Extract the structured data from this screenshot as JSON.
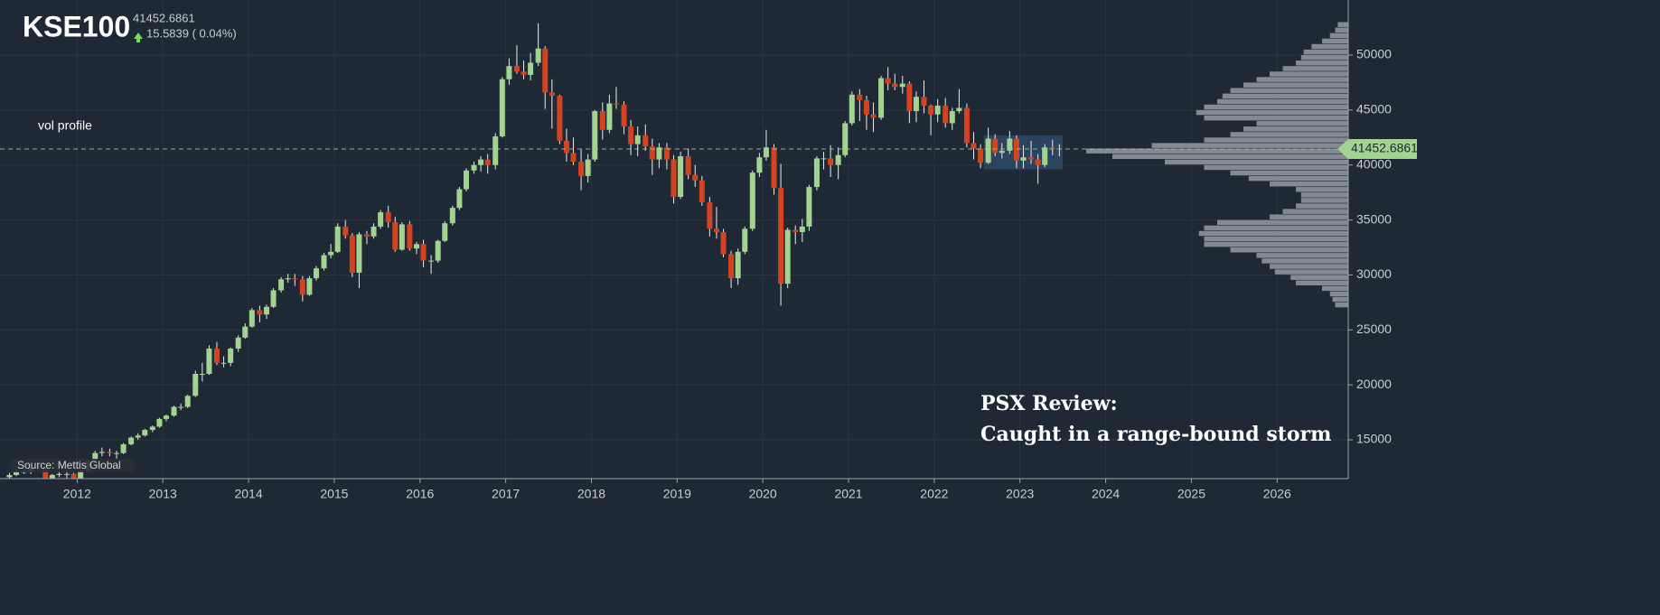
{
  "chart_data": {
    "type": "candlestick",
    "title": "KSE100",
    "last_price": 41452.6861,
    "change_label": "15.5839 ( 0.04%)",
    "annotations": [
      "vol profile",
      "Source: Mettis Global",
      "PSX Review:",
      "Caught in a range-bound storm"
    ],
    "up_color": "#a3d48f",
    "down_color": "#d4421f",
    "grid": true,
    "xlim": [
      2011.1,
      2026.83
    ],
    "xticks": [
      2012,
      2013,
      2014,
      2015,
      2016,
      2017,
      2018,
      2019,
      2020,
      2021,
      2022,
      2023,
      2024,
      2025,
      2026
    ],
    "ylim": [
      11470,
      55010
    ],
    "yticks": [
      15000,
      20000,
      25000,
      30000,
      35000,
      40000,
      45000,
      50000
    ],
    "x": [
      2011.21,
      2011.29,
      2011.38,
      2011.46,
      2011.54,
      2011.63,
      2011.71,
      2011.79,
      2011.88,
      2011.96,
      2012.04,
      2012.13,
      2012.21,
      2012.29,
      2012.38,
      2012.46,
      2012.54,
      2012.63,
      2012.71,
      2012.79,
      2012.88,
      2012.96,
      2013.04,
      2013.13,
      2013.21,
      2013.29,
      2013.38,
      2013.46,
      2013.54,
      2013.63,
      2013.71,
      2013.79,
      2013.88,
      2013.96,
      2014.04,
      2014.13,
      2014.21,
      2014.29,
      2014.38,
      2014.46,
      2014.54,
      2014.63,
      2014.71,
      2014.79,
      2014.88,
      2014.96,
      2015.04,
      2015.13,
      2015.21,
      2015.29,
      2015.38,
      2015.46,
      2015.54,
      2015.63,
      2015.71,
      2015.79,
      2015.88,
      2015.96,
      2016.04,
      2016.13,
      2016.21,
      2016.29,
      2016.38,
      2016.46,
      2016.54,
      2016.63,
      2016.71,
      2016.79,
      2016.88,
      2016.96,
      2017.04,
      2017.13,
      2017.21,
      2017.29,
      2017.38,
      2017.46,
      2017.54,
      2017.63,
      2017.71,
      2017.79,
      2017.88,
      2017.96,
      2018.04,
      2018.13,
      2018.21,
      2018.29,
      2018.38,
      2018.46,
      2018.54,
      2018.63,
      2018.71,
      2018.79,
      2018.88,
      2018.96,
      2019.04,
      2019.13,
      2019.21,
      2019.29,
      2019.38,
      2019.46,
      2019.54,
      2019.63,
      2019.71,
      2019.79,
      2019.88,
      2019.96,
      2020.04,
      2020.13,
      2020.21,
      2020.29,
      2020.38,
      2020.46,
      2020.54,
      2020.63,
      2020.71,
      2020.79,
      2020.88,
      2020.96,
      2021.04,
      2021.13,
      2021.21,
      2021.29,
      2021.38,
      2021.46,
      2021.54,
      2021.63,
      2021.71,
      2021.79,
      2021.88,
      2021.96,
      2022.04,
      2022.13,
      2022.21,
      2022.29,
      2022.38,
      2022.46,
      2022.54,
      2022.63,
      2022.71,
      2022.79,
      2022.88,
      2022.96,
      2023.04,
      2023.13,
      2023.21,
      2023.29,
      2023.38,
      2023.46
    ],
    "ohlc": [
      [
        11600,
        12000,
        11400,
        11800
      ],
      [
        11800,
        12300,
        11700,
        12100
      ],
      [
        12100,
        12400,
        11900,
        12100
      ],
      [
        12100,
        12600,
        11900,
        12500
      ],
      [
        12500,
        12700,
        12200,
        12400
      ],
      [
        12400,
        12500,
        10900,
        11000
      ],
      [
        11000,
        11900,
        10900,
        11800
      ],
      [
        11800,
        12100,
        11600,
        11900
      ],
      [
        11900,
        12100,
        11500,
        11900
      ],
      [
        11900,
        12000,
        11200,
        11350
      ],
      [
        11350,
        12300,
        11200,
        12200
      ],
      [
        12200,
        13200,
        12100,
        13100
      ],
      [
        13100,
        14000,
        13000,
        13800
      ],
      [
        13800,
        14300,
        13500,
        13900
      ],
      [
        13900,
        14200,
        13500,
        13800
      ],
      [
        13800,
        14000,
        13300,
        13800
      ],
      [
        13800,
        14700,
        13700,
        14600
      ],
      [
        14600,
        15300,
        14500,
        15200
      ],
      [
        15200,
        15600,
        15000,
        15400
      ],
      [
        15400,
        16000,
        15300,
        15900
      ],
      [
        15900,
        16300,
        15700,
        16200
      ],
      [
        16200,
        17000,
        16100,
        16900
      ],
      [
        16900,
        17300,
        16700,
        17200
      ],
      [
        17200,
        18100,
        17100,
        18000
      ],
      [
        18000,
        18300,
        17700,
        18000
      ],
      [
        18000,
        19100,
        17900,
        19000
      ],
      [
        19000,
        21300,
        18900,
        21000
      ],
      [
        21000,
        22000,
        20300,
        21000
      ],
      [
        21000,
        23600,
        20900,
        23300
      ],
      [
        23300,
        23900,
        21800,
        22000
      ],
      [
        22000,
        22600,
        21600,
        22000
      ],
      [
        22000,
        23400,
        21700,
        23300
      ],
      [
        23300,
        24500,
        23000,
        24300
      ],
      [
        24300,
        25600,
        24200,
        25300
      ],
      [
        25300,
        27000,
        25200,
        26800
      ],
      [
        26800,
        27200,
        25700,
        26400
      ],
      [
        26400,
        27300,
        26000,
        27100
      ],
      [
        27100,
        28800,
        27000,
        28600
      ],
      [
        28600,
        29800,
        28400,
        29600
      ],
      [
        29600,
        30100,
        29300,
        29700
      ],
      [
        29700,
        30100,
        29000,
        29600
      ],
      [
        29600,
        29900,
        27600,
        28200
      ],
      [
        28200,
        29900,
        28100,
        29700
      ],
      [
        29700,
        30800,
        29500,
        30600
      ],
      [
        30600,
        32000,
        30400,
        31800
      ],
      [
        31800,
        32800,
        31500,
        32100
      ],
      [
        32100,
        34700,
        32000,
        34400
      ],
      [
        34400,
        35000,
        33300,
        33600
      ],
      [
        33600,
        33800,
        29800,
        30200
      ],
      [
        30200,
        33900,
        28800,
        33700
      ],
      [
        33700,
        34000,
        32800,
        33500
      ],
      [
        33500,
        34700,
        33300,
        34400
      ],
      [
        34400,
        35900,
        34200,
        35700
      ],
      [
        35700,
        36300,
        34300,
        34800
      ],
      [
        34800,
        35300,
        32100,
        32300
      ],
      [
        32300,
        34800,
        32200,
        34600
      ],
      [
        34600,
        34900,
        32200,
        32400
      ],
      [
        32400,
        33000,
        31900,
        32800
      ],
      [
        32800,
        33200,
        30700,
        31300
      ],
      [
        31300,
        31800,
        30100,
        31300
      ],
      [
        31300,
        33200,
        31100,
        33100
      ],
      [
        33100,
        34900,
        33000,
        34700
      ],
      [
        34700,
        36300,
        34500,
        36100
      ],
      [
        36100,
        38000,
        35900,
        37800
      ],
      [
        37800,
        39700,
        37600,
        39500
      ],
      [
        39500,
        40300,
        39200,
        40000
      ],
      [
        40000,
        40800,
        39400,
        40500
      ],
      [
        40500,
        41000,
        39200,
        40000
      ],
      [
        40000,
        42900,
        39600,
        42600
      ],
      [
        42600,
        48000,
        42500,
        47800
      ],
      [
        47800,
        49700,
        47300,
        49000
      ],
      [
        49000,
        50900,
        48300,
        48500
      ],
      [
        48500,
        49500,
        47800,
        48200
      ],
      [
        48200,
        50200,
        47700,
        49300
      ],
      [
        49300,
        52900,
        49000,
        50600
      ],
      [
        50600,
        50800,
        45100,
        46600
      ],
      [
        46600,
        47800,
        43300,
        46300
      ],
      [
        46300,
        46400,
        41900,
        42200
      ],
      [
        42200,
        43300,
        40300,
        41100
      ],
      [
        41100,
        42500,
        40000,
        40300
      ],
      [
        40300,
        41400,
        37700,
        39000
      ],
      [
        39000,
        41000,
        38400,
        40500
      ],
      [
        40500,
        45000,
        40300,
        44900
      ],
      [
        44900,
        45700,
        42300,
        43200
      ],
      [
        43200,
        46400,
        42900,
        45600
      ],
      [
        45600,
        47100,
        45100,
        45500
      ],
      [
        45500,
        45800,
        42800,
        43500
      ],
      [
        43500,
        44100,
        40900,
        41900
      ],
      [
        41900,
        43500,
        40800,
        42700
      ],
      [
        42700,
        43700,
        41300,
        41700
      ],
      [
        41700,
        42400,
        39100,
        40500
      ],
      [
        40500,
        42000,
        39700,
        41600
      ],
      [
        41600,
        42000,
        39600,
        40500
      ],
      [
        40500,
        40900,
        36500,
        37100
      ],
      [
        37100,
        41200,
        36900,
        40800
      ],
      [
        40800,
        41500,
        38700,
        39100
      ],
      [
        39100,
        40000,
        38000,
        38600
      ],
      [
        38600,
        39000,
        36300,
        36600
      ],
      [
        36600,
        37100,
        33500,
        34200
      ],
      [
        34200,
        36200,
        33300,
        33900
      ],
      [
        33900,
        34200,
        31600,
        31900
      ],
      [
        31900,
        32200,
        28800,
        29700
      ],
      [
        29700,
        32400,
        29100,
        32100
      ],
      [
        32100,
        34400,
        31900,
        34200
      ],
      [
        34200,
        39500,
        34000,
        39300
      ],
      [
        39300,
        41100,
        38900,
        40700
      ],
      [
        40700,
        43200,
        40400,
        41600
      ],
      [
        41600,
        41900,
        37300,
        37900
      ],
      [
        37900,
        40100,
        27200,
        29200
      ],
      [
        29200,
        34300,
        28800,
        34100
      ],
      [
        34100,
        34500,
        32800,
        33900
      ],
      [
        33900,
        35100,
        33000,
        34400
      ],
      [
        34400,
        38200,
        34000,
        38000
      ],
      [
        38000,
        40800,
        37700,
        40600
      ],
      [
        40600,
        41200,
        39600,
        40600
      ],
      [
        40600,
        41800,
        38900,
        40000
      ],
      [
        40000,
        41600,
        38700,
        40900
      ],
      [
        40900,
        44000,
        40700,
        43800
      ],
      [
        43800,
        46700,
        43600,
        46400
      ],
      [
        46400,
        46900,
        44000,
        45900
      ],
      [
        45900,
        46300,
        43200,
        44600
      ],
      [
        44600,
        45700,
        43000,
        44300
      ],
      [
        44300,
        48100,
        44100,
        47900
      ],
      [
        47900,
        48900,
        46800,
        47400
      ],
      [
        47400,
        48300,
        46800,
        47100
      ],
      [
        47100,
        48100,
        46500,
        47400
      ],
      [
        47400,
        47600,
        43800,
        44900
      ],
      [
        44900,
        46700,
        43900,
        46200
      ],
      [
        46200,
        47700,
        44700,
        45400
      ],
      [
        45400,
        45500,
        42700,
        44600
      ],
      [
        44600,
        46000,
        43900,
        45400
      ],
      [
        45400,
        46100,
        43400,
        43800
      ],
      [
        43800,
        45200,
        43200,
        44900
      ],
      [
        44900,
        46900,
        44700,
        45200
      ],
      [
        45200,
        45600,
        41600,
        42000
      ],
      [
        42000,
        43000,
        40500,
        41500
      ],
      [
        41500,
        41900,
        39700,
        40200
      ],
      [
        40200,
        43400,
        40100,
        42400
      ],
      [
        42400,
        42800,
        40800,
        41100
      ],
      [
        41100,
        42000,
        40600,
        41300
      ],
      [
        41300,
        43100,
        41000,
        42400
      ],
      [
        42400,
        42700,
        39700,
        40400
      ],
      [
        40400,
        41800,
        39700,
        40700
      ],
      [
        40700,
        42200,
        40100,
        40500
      ],
      [
        40500,
        41000,
        38300,
        40000
      ],
      [
        40000,
        41900,
        39800,
        41600
      ],
      [
        41600,
        42300,
        40900,
        41500
      ],
      [
        41500,
        41900,
        40800,
        41452.6861
      ]
    ],
    "highlight": {
      "x": [
        2022.58,
        2023.5
      ],
      "y": [
        39600,
        42700
      ],
      "color": "#2f4c6e"
    },
    "volume_profile": {
      "color": "#8e959e",
      "bins": [
        27000,
        27500,
        28000,
        28500,
        29000,
        29500,
        30000,
        30500,
        31000,
        31500,
        32000,
        32500,
        33000,
        33500,
        34000,
        34500,
        35000,
        35500,
        36000,
        36500,
        37000,
        37500,
        38000,
        38500,
        39000,
        39500,
        40000,
        40500,
        41000,
        41500,
        42000,
        42500,
        43000,
        43500,
        44000,
        44500,
        45000,
        45500,
        46000,
        46500,
        47000,
        47500,
        48000,
        48500,
        49000,
        49500,
        50000,
        50500,
        51000,
        51500,
        52000,
        52500,
        53000
      ],
      "values": [
        5,
        6,
        7,
        10,
        20,
        22,
        28,
        30,
        33,
        35,
        45,
        55,
        55,
        57,
        55,
        50,
        30,
        25,
        20,
        18,
        18,
        20,
        30,
        38,
        45,
        55,
        70,
        90,
        100,
        75,
        55,
        45,
        40,
        35,
        55,
        58,
        55,
        50,
        48,
        45,
        40,
        35,
        30,
        25,
        20,
        18,
        17,
        14,
        10,
        7,
        5,
        4
      ],
      "xlim": [
        0,
        100
      ]
    }
  }
}
